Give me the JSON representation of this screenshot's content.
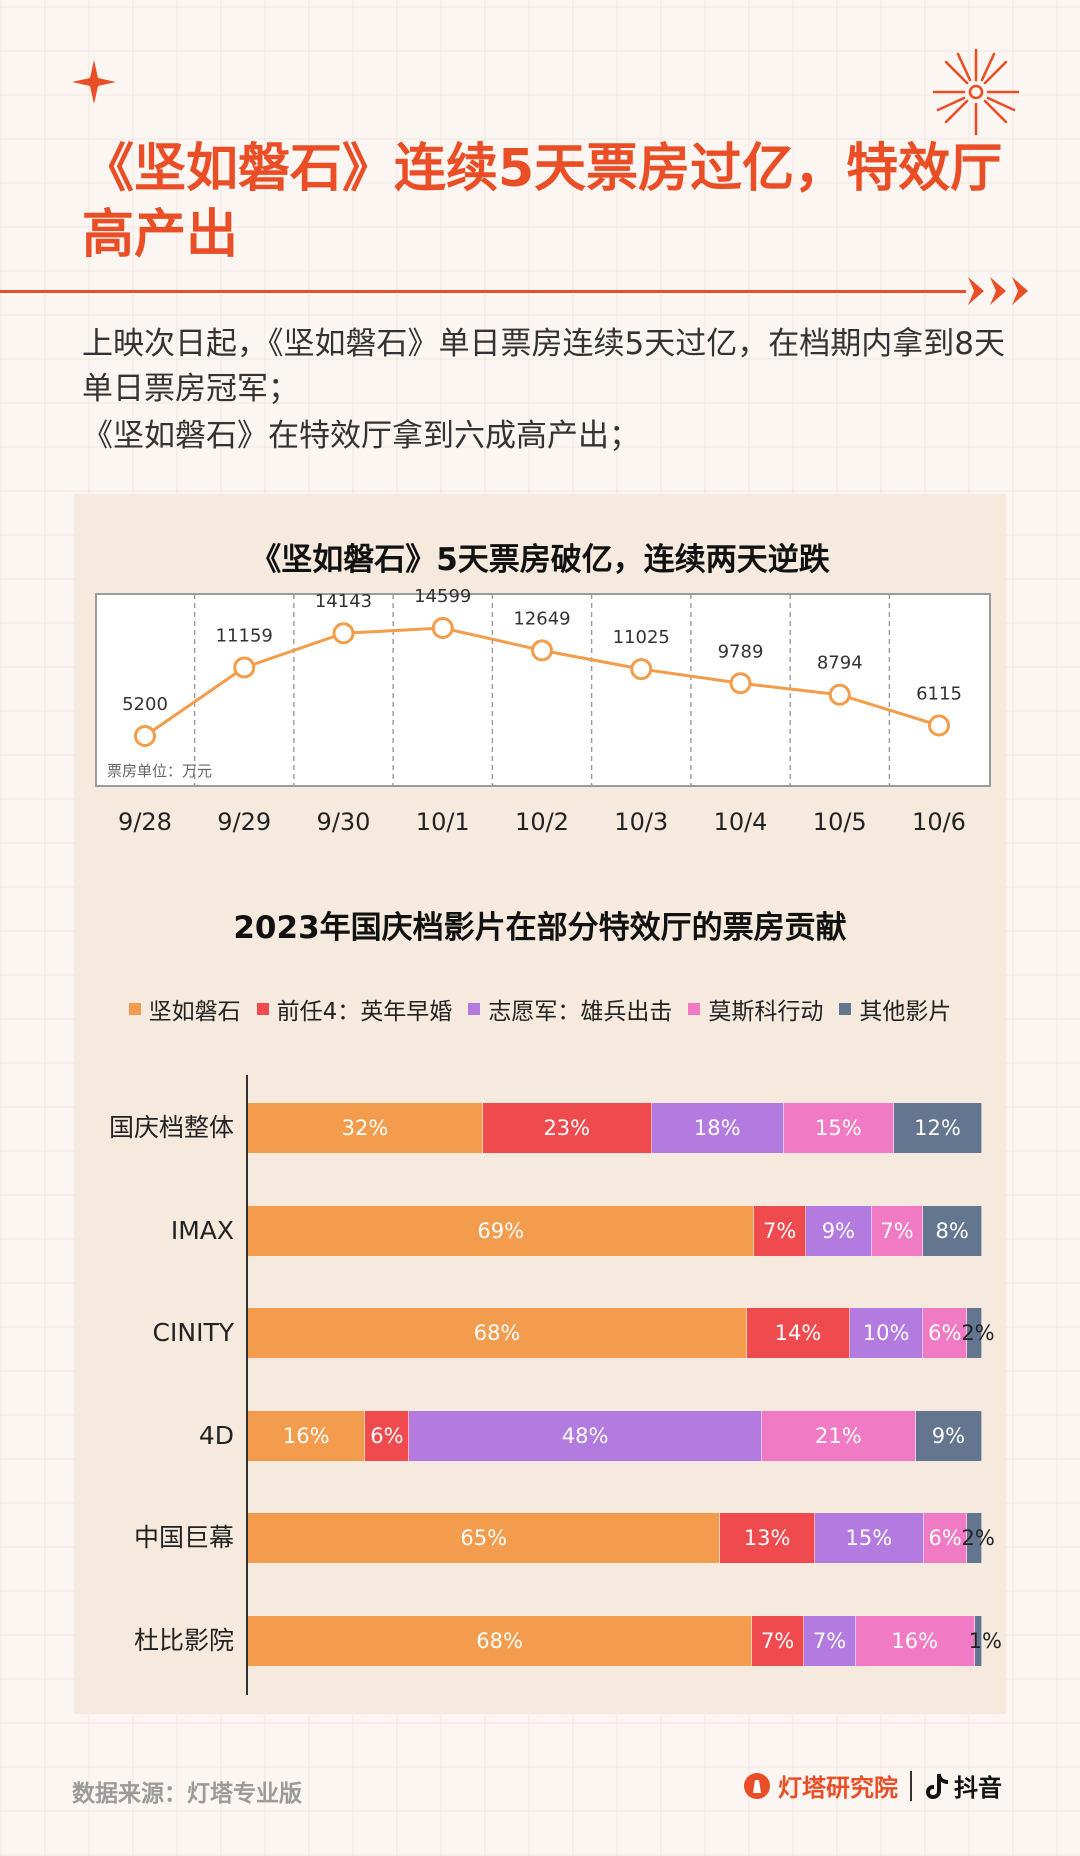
{
  "title": "《坚如磐石》连续5天票房过亿，特效厅高产出",
  "paragraphs": [
    "上映次日起，《坚如磐石》单日票房连续5天过亿，在档期内拿到8天单日票房冠军；",
    "《坚如磐石》在特效厅拿到六成高产出；"
  ],
  "source": "数据来源：灯塔专业版",
  "brand": {
    "name": "灯塔研究院",
    "platform": "抖音"
  },
  "chart_data": [
    {
      "type": "line",
      "title": "《坚如磐石》5天票房破亿，连续两天逆跌",
      "unit_note": "票房单位：万元",
      "x": [
        "9/28",
        "9/29",
        "9/30",
        "10/1",
        "10/2",
        "10/3",
        "10/4",
        "10/5",
        "10/6"
      ],
      "series": [
        {
          "values": [
            5200,
            11159,
            14143,
            14599,
            12649,
            11025,
            9789,
            8794,
            6115
          ]
        }
      ],
      "color": "#f39c4a",
      "grid": "vertical dashed"
    },
    {
      "type": "bar",
      "stacked": true,
      "orientation": "horizontal",
      "title": "2023年国庆档影片在部分特效厅的票房贡献",
      "categories": [
        "国庆档整体",
        "IMAX",
        "CINITY",
        "4D",
        "中国巨幕",
        "杜比影院"
      ],
      "series": [
        {
          "name": "坚如磐石",
          "color": "#f49c4d",
          "values": [
            32,
            69,
            68,
            16,
            65,
            68
          ]
        },
        {
          "name": "前任4：英年早婚",
          "color": "#ef4a4e",
          "values": [
            23,
            7,
            14,
            6,
            13,
            7
          ]
        },
        {
          "name": "志愿军：雄兵出击",
          "color": "#b37ae0",
          "values": [
            18,
            9,
            10,
            48,
            15,
            7
          ]
        },
        {
          "name": "莫斯科行动",
          "color": "#f07ac4",
          "values": [
            15,
            7,
            6,
            21,
            6,
            16
          ]
        },
        {
          "name": "其他影片",
          "color": "#64758f",
          "values": [
            12,
            8,
            2,
            9,
            2,
            1
          ]
        }
      ],
      "labels": [
        [
          "32%",
          "23%",
          "18%",
          "15%",
          "12%"
        ],
        [
          "69%",
          "7%",
          "9%",
          "7%",
          "8%"
        ],
        [
          "68%",
          "14%",
          "10%",
          "6%",
          "2%"
        ],
        [
          "16%",
          "6%",
          "48%",
          "21%",
          "9%"
        ],
        [
          "65%",
          "13%",
          "15%",
          "6%",
          "2%"
        ],
        [
          "68%",
          "7%",
          "7%",
          "16%",
          "1%"
        ]
      ],
      "legend_position": "top"
    }
  ]
}
